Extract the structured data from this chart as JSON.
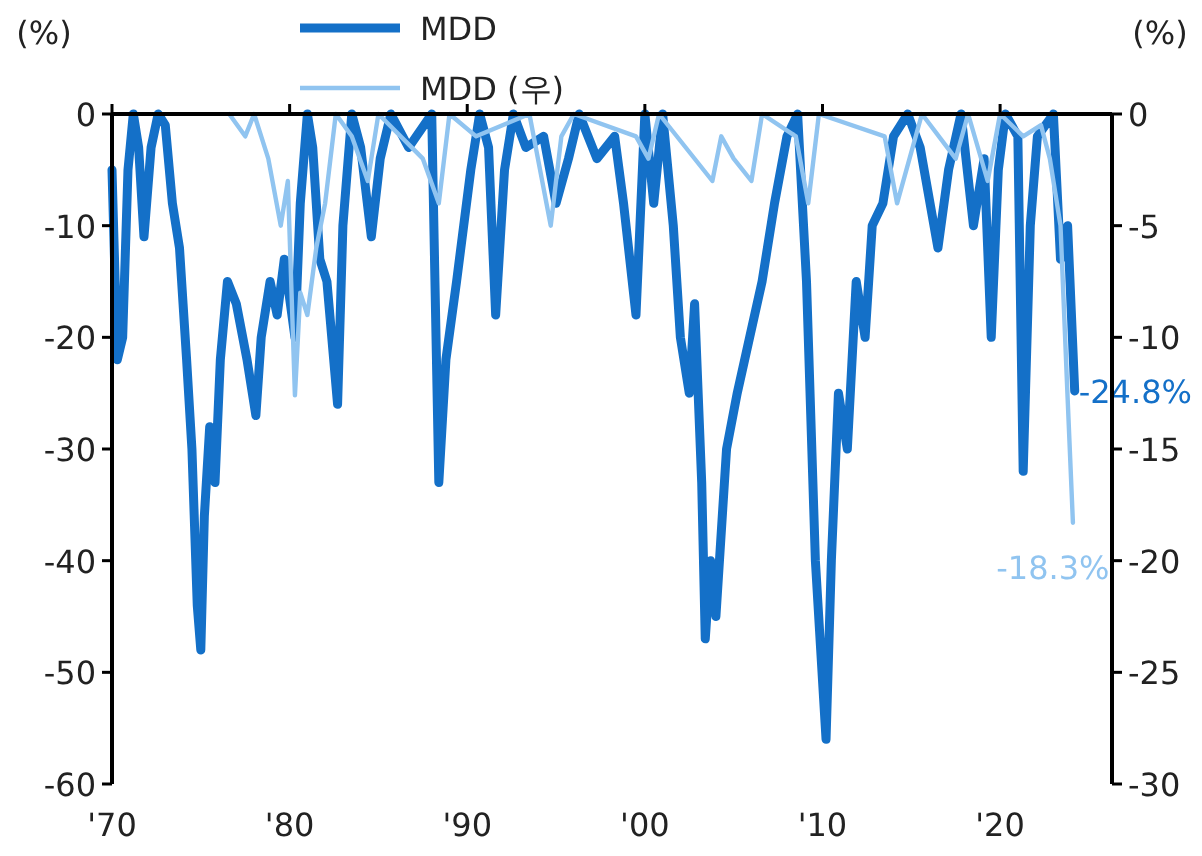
{
  "chart_data": {
    "type": "line",
    "ylabel": "(%)",
    "y2label": "(%)",
    "xlim": [
      1970,
      2026.3
    ],
    "xticks": [
      {
        "value": 1970,
        "label": "'70"
      },
      {
        "value": 1980,
        "label": "'80"
      },
      {
        "value": 1990,
        "label": "'90"
      },
      {
        "value": 2000,
        "label": "'00"
      },
      {
        "value": 2010,
        "label": "'10"
      },
      {
        "value": 2020,
        "label": "'20"
      }
    ],
    "ylim": [
      -60,
      0
    ],
    "yticks": [
      0,
      -10,
      -20,
      -30,
      -40,
      -50,
      -60
    ],
    "y2lim": [
      -30,
      0
    ],
    "y2ticks": [
      0,
      -5,
      -10,
      -15,
      -20,
      -25,
      -30
    ],
    "legend": "top",
    "grid": false,
    "marker": "none",
    "series": [
      {
        "name": "MDD",
        "color": "#1470c8",
        "x": [
          1970.0,
          1970.3,
          1970.6,
          1970.9,
          1971.2,
          1971.5,
          1971.8,
          1972.2,
          1972.6,
          1973.0,
          1973.4,
          1973.8,
          1974.2,
          1974.5,
          1974.8,
          1975.0,
          1975.2,
          1975.5,
          1975.8,
          1976.1,
          1976.5,
          1977.0,
          1977.6,
          1978.1,
          1978.4,
          1978.9,
          1979.3,
          1979.7,
          1980.3,
          1980.6,
          1981.0,
          1981.3,
          1981.7,
          1982.1,
          1982.7,
          1983.0,
          1983.5,
          1984.0,
          1984.6,
          1985.1,
          1985.7,
          1986.7,
          1988.0,
          1988.4,
          1988.8,
          1989.4,
          1990.2,
          1990.7,
          1991.2,
          1991.6,
          1992.1,
          1992.6,
          1993.3,
          1994.3,
          1995.0,
          1995.7,
          1996.3,
          1997.3,
          1998.3,
          1998.8,
          1999.5,
          2000.0,
          2000.5,
          2001.0,
          2001.6,
          2002.0,
          2002.5,
          2002.8,
          2003.2,
          2003.4,
          2003.7,
          2004.0,
          2004.6,
          2005.2,
          2005.9,
          2006.6,
          2007.3,
          2008.0,
          2008.6,
          2009.1,
          2009.6,
          2009.9,
          2010.2,
          2010.5,
          2010.9,
          2011.4,
          2011.9,
          2012.4,
          2012.8,
          2013.4,
          2014.0,
          2014.8,
          2015.5,
          2016.5,
          2017.1,
          2017.8,
          2018.5,
          2019.1,
          2019.5,
          2019.9,
          2020.3,
          2021.0,
          2021.3,
          2021.7,
          2022.1,
          2023.0,
          2023.4,
          2023.8,
          2024.2
        ],
        "values": [
          -5,
          -22,
          -20,
          -5,
          0,
          -3,
          -11,
          -3,
          0,
          -1,
          -8,
          -12,
          -22,
          -30,
          -44,
          -48,
          -36,
          -28,
          -33,
          -22,
          -15,
          -17,
          -22,
          -27,
          -20,
          -15,
          -18,
          -13,
          -20,
          -8,
          0,
          -3,
          -13,
          -15,
          -26,
          -10,
          0,
          -3,
          -11,
          -4,
          0,
          -3,
          0,
          -33,
          -22,
          -15,
          -5,
          0,
          -3,
          -18,
          -5,
          0,
          -3,
          -2,
          -8,
          -4,
          0,
          -4,
          -2,
          -8,
          -18,
          0,
          -8,
          0,
          -10,
          -20,
          -25,
          -17,
          -33,
          -47,
          -40,
          -45,
          -30,
          -25,
          -20,
          -15,
          -8,
          -2,
          0,
          -15,
          -40,
          -48,
          -56,
          -40,
          -25,
          -30,
          -15,
          -20,
          -10,
          -8,
          -2,
          0,
          -3,
          -12,
          -5,
          0,
          -10,
          -4,
          -20,
          -5,
          0,
          -2,
          -32,
          -10,
          -2,
          0,
          -13,
          -10,
          -24.8
        ],
        "value_labels": [
          null,
          null,
          null,
          null,
          null,
          null,
          null,
          null,
          null,
          null,
          null,
          null,
          null,
          null,
          null,
          null,
          null,
          null,
          null,
          null,
          null,
          null,
          null,
          null,
          null,
          null,
          null,
          null,
          null,
          null,
          null,
          null,
          null,
          null,
          null,
          null,
          null,
          null,
          null,
          null,
          null,
          null,
          null,
          null,
          null,
          null,
          null,
          null,
          null,
          null,
          null,
          null,
          null,
          null,
          null,
          null,
          null,
          null,
          null,
          null,
          null,
          null,
          null,
          null,
          null,
          null,
          null,
          null,
          null,
          null,
          null,
          null,
          null,
          null,
          null,
          null,
          null,
          null,
          null,
          null,
          null,
          null,
          null,
          null,
          null,
          null,
          null,
          null,
          null,
          null,
          null,
          null,
          null,
          null,
          null,
          null,
          null,
          null,
          null,
          null,
          null,
          null,
          null,
          null,
          null,
          null,
          null,
          null,
          "-24.8%"
        ]
      },
      {
        "name": "MDD (우)",
        "color": "#90c4f0",
        "axis": "y2",
        "x": [
          1976.6,
          1977.5,
          1978.0,
          1978.8,
          1979.5,
          1979.9,
          1980.3,
          1980.6,
          1981.0,
          1981.5,
          1982.0,
          1982.6,
          1983.5,
          1984.4,
          1985.0,
          1987.5,
          1988.4,
          1989.0,
          1990.5,
          1993.5,
          1994.7,
          1995.3,
          1996.0,
          1999.5,
          2000.2,
          2000.8,
          2003.8,
          2004.3,
          2005.0,
          2006.0,
          2006.6,
          2008.5,
          2009.2,
          2009.8,
          2013.5,
          2014.2,
          2014.9,
          2015.6,
          2017.5,
          2018.2,
          2019.3,
          2020.0,
          2021.3,
          2022.3,
          2022.8,
          2023.4,
          2023.8,
          2024.1
        ],
        "values": [
          0,
          -1,
          0,
          -2,
          -5,
          -3,
          -12.6,
          -8,
          -9,
          -6,
          -4,
          0,
          -1,
          -3,
          0,
          -2,
          -4,
          0,
          -1,
          0,
          -5,
          -1,
          0,
          -1,
          -2,
          0,
          -3,
          -1,
          -2,
          -3,
          0,
          -1,
          -4,
          0,
          -1,
          -4,
          -2,
          0,
          -2,
          0,
          -3,
          0,
          -1,
          -0.5,
          -2,
          -5,
          -12.7,
          -18.3
        ],
        "value_labels": [
          null,
          null,
          null,
          null,
          null,
          null,
          null,
          null,
          null,
          null,
          null,
          null,
          null,
          null,
          null,
          null,
          null,
          null,
          null,
          null,
          null,
          null,
          null,
          null,
          null,
          null,
          null,
          null,
          null,
          null,
          null,
          null,
          null,
          null,
          null,
          null,
          null,
          null,
          null,
          null,
          null,
          null,
          null,
          null,
          null,
          null,
          null,
          "-18.3%"
        ]
      }
    ]
  }
}
